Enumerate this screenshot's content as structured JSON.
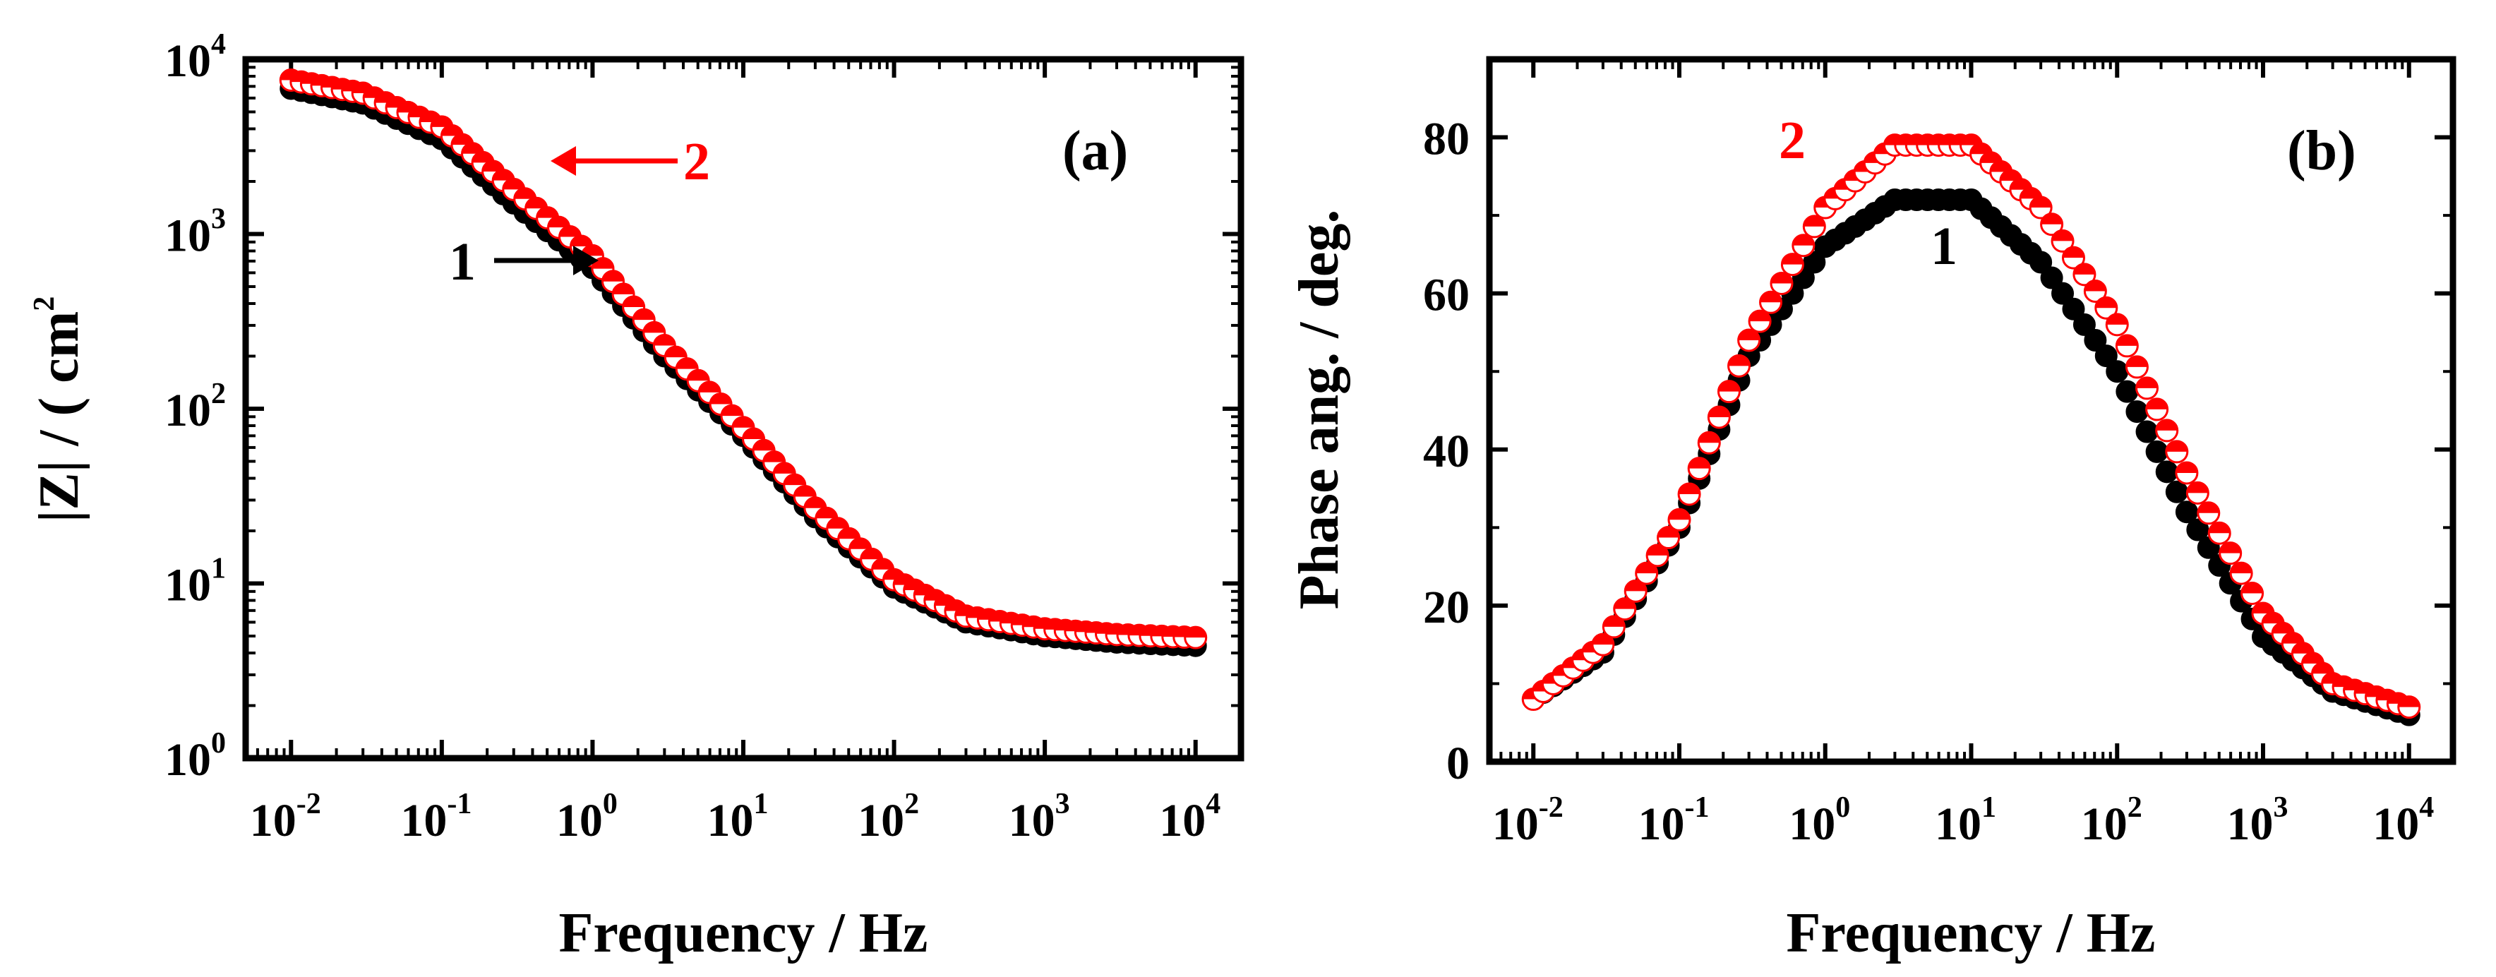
{
  "colors": {
    "series1_fill": "#000000",
    "series2_edge": "#ff0000",
    "series2_face": "#ffffff",
    "axis": "#000000",
    "annotation2": "#ff0000"
  },
  "chart_data": [
    {
      "type": "scatter",
      "panel_label": "(a)",
      "xlabel": "Frequency / Hz",
      "ylabel": "|Z| / ( cm",
      "ylabel_superscript": "2",
      "xscale": "log",
      "yscale": "log",
      "xlim": [
        0.005,
        20000
      ],
      "ylim": [
        1,
        10000
      ],
      "xticks": [
        {
          "base": "10",
          "exp": "-2"
        },
        {
          "base": "10",
          "exp": "-1"
        },
        {
          "base": "10",
          "exp": "0"
        },
        {
          "base": "10",
          "exp": "1"
        },
        {
          "base": "10",
          "exp": "2"
        },
        {
          "base": "10",
          "exp": "3"
        },
        {
          "base": "10",
          "exp": "4"
        }
      ],
      "yticks": [
        {
          "base": "10",
          "exp": "0"
        },
        {
          "base": "10",
          "exp": "1"
        },
        {
          "base": "10",
          "exp": "2"
        },
        {
          "base": "10",
          "exp": "3"
        },
        {
          "base": "10",
          "exp": "4"
        }
      ],
      "series": [
        {
          "name": "1",
          "style": "filled-black",
          "x": [
            0.01,
            0.03,
            0.1,
            0.3,
            1,
            3,
            10,
            30,
            100,
            300,
            1000,
            3000,
            10000
          ],
          "y": [
            6800,
            5600,
            3500,
            1500,
            640,
            200,
            70,
            24,
            9.5,
            6.0,
            5.0,
            4.6,
            4.4
          ]
        },
        {
          "name": "2",
          "style": "half-red",
          "x": [
            0.01,
            0.03,
            0.1,
            0.3,
            1,
            3,
            10,
            30,
            100,
            300,
            1000,
            3000,
            10000
          ],
          "y": [
            7600,
            6400,
            4100,
            1800,
            750,
            230,
            78,
            27,
            10.5,
            6.5,
            5.5,
            5.1,
            4.9
          ]
        }
      ],
      "annotations": [
        {
          "text": "1",
          "points_to_series": "1"
        },
        {
          "text": "2",
          "points_to_series": "2"
        }
      ]
    },
    {
      "type": "scatter",
      "panel_label": "(b)",
      "xlabel": "Frequency / Hz",
      "ylabel": "Phase ang. / deg.",
      "xscale": "log",
      "yscale": "linear",
      "xlim": [
        0.005,
        20000
      ],
      "ylim": [
        0,
        90
      ],
      "xticks": [
        {
          "base": "10",
          "exp": "-2"
        },
        {
          "base": "10",
          "exp": "-1"
        },
        {
          "base": "10",
          "exp": "0"
        },
        {
          "base": "10",
          "exp": "1"
        },
        {
          "base": "10",
          "exp": "2"
        },
        {
          "base": "10",
          "exp": "3"
        },
        {
          "base": "10",
          "exp": "4"
        }
      ],
      "yticks": [
        "0",
        "20",
        "40",
        "60",
        "80"
      ],
      "series": [
        {
          "name": "1",
          "style": "filled-black",
          "x": [
            0.01,
            0.03,
            0.1,
            0.3,
            1,
            3,
            10,
            30,
            100,
            300,
            1000,
            3000,
            10000
          ],
          "y": [
            8,
            14,
            30,
            52,
            66,
            72,
            72,
            64,
            50,
            32,
            16,
            9,
            6
          ]
        },
        {
          "name": "2",
          "style": "half-red",
          "x": [
            0.01,
            0.03,
            0.1,
            0.3,
            1,
            3,
            10,
            30,
            100,
            300,
            1000,
            3000,
            10000
          ],
          "y": [
            8,
            15,
            31,
            54,
            71,
            79,
            79,
            71,
            56,
            37,
            19,
            10,
            7
          ]
        }
      ],
      "annotations": [
        {
          "text": "1",
          "points_to_series": "1"
        },
        {
          "text": "2",
          "points_to_series": "2"
        }
      ]
    }
  ]
}
